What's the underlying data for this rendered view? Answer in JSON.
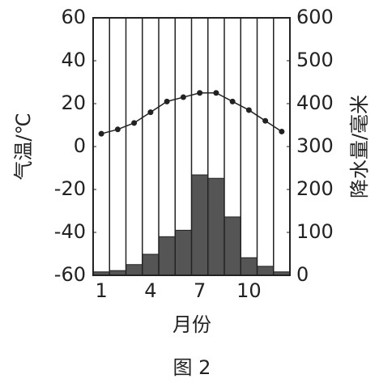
{
  "chart_data": {
    "type": "combo",
    "caption": "图 2",
    "x_label": "月份",
    "y_label": "气温/℃",
    "y2_label": "降水量/毫米",
    "categories": [
      1,
      null,
      null,
      4,
      null,
      null,
      7,
      null,
      null,
      10,
      null,
      null
    ],
    "ylim": [
      -60,
      60
    ],
    "yticks": [
      -60,
      -40,
      -20,
      0,
      20,
      40,
      60
    ],
    "y2lim": [
      0,
      600
    ],
    "y2ticks": [
      0,
      100,
      200,
      300,
      400,
      500,
      600
    ],
    "series": [
      {
        "name": "降水量",
        "type": "bar",
        "axis": "y2",
        "color": "#555555",
        "values": [
          8,
          11,
          25,
          49,
          90,
          105,
          234,
          226,
          136,
          41,
          21,
          8
        ]
      },
      {
        "name": "气温",
        "type": "line",
        "axis": "y",
        "color": "#222222",
        "values": [
          6,
          8,
          11,
          16,
          21,
          23,
          25,
          25,
          21,
          17,
          12,
          7
        ]
      }
    ]
  }
}
